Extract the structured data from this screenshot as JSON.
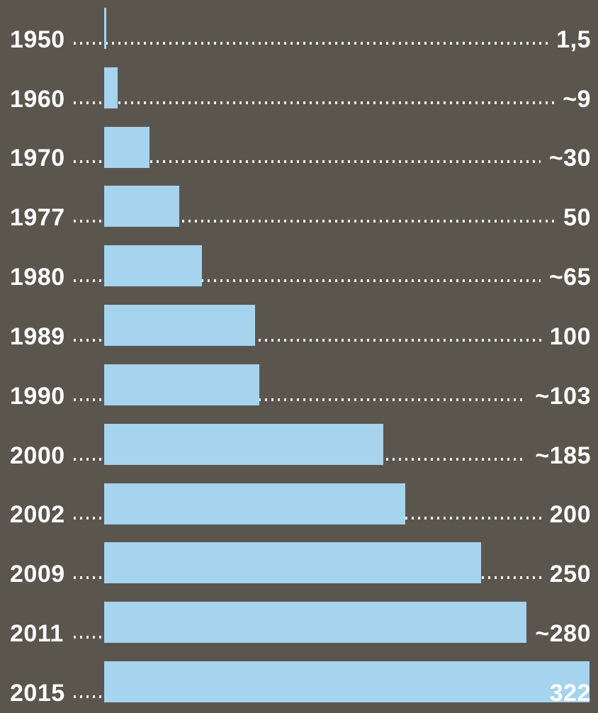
{
  "chart_data": {
    "type": "bar",
    "orientation": "horizontal",
    "title": "",
    "xlabel": "",
    "ylabel": "",
    "xlim": [
      0,
      322
    ],
    "grid": false,
    "legend": "none",
    "categories": [
      "1950",
      "1960",
      "1970",
      "1977",
      "1980",
      "1989",
      "1990",
      "2000",
      "2002",
      "2009",
      "2011",
      "2015"
    ],
    "values": [
      1.5,
      9,
      30,
      50,
      65,
      100,
      103,
      185,
      200,
      250,
      280,
      322
    ],
    "rows": [
      {
        "year": "1950",
        "value": 1.5,
        "value_label": "1,5",
        "value_inside_bar": false
      },
      {
        "year": "1960",
        "value": 9,
        "value_label": "~9",
        "value_inside_bar": false
      },
      {
        "year": "1970",
        "value": 30,
        "value_label": "~30",
        "value_inside_bar": false
      },
      {
        "year": "1977",
        "value": 50,
        "value_label": "50",
        "value_inside_bar": false
      },
      {
        "year": "1980",
        "value": 65,
        "value_label": "~65",
        "value_inside_bar": false
      },
      {
        "year": "1989",
        "value": 100,
        "value_label": "100",
        "value_inside_bar": false
      },
      {
        "year": "1990",
        "value": 103,
        "value_label": "~103",
        "value_inside_bar": false
      },
      {
        "year": "2000",
        "value": 185,
        "value_label": "~185",
        "value_inside_bar": false
      },
      {
        "year": "2002",
        "value": 200,
        "value_label": "200",
        "value_inside_bar": false
      },
      {
        "year": "2009",
        "value": 250,
        "value_label": "250",
        "value_inside_bar": false
      },
      {
        "year": "2011",
        "value": 280,
        "value_label": "~280",
        "value_inside_bar": false
      },
      {
        "year": "2015",
        "value": 322,
        "value_label": "322",
        "value_inside_bar": true
      }
    ],
    "colors": {
      "background": "#5a564e",
      "bar": "#a6d3ee",
      "text": "#ffffff",
      "dots": "#f2f0ec"
    }
  }
}
